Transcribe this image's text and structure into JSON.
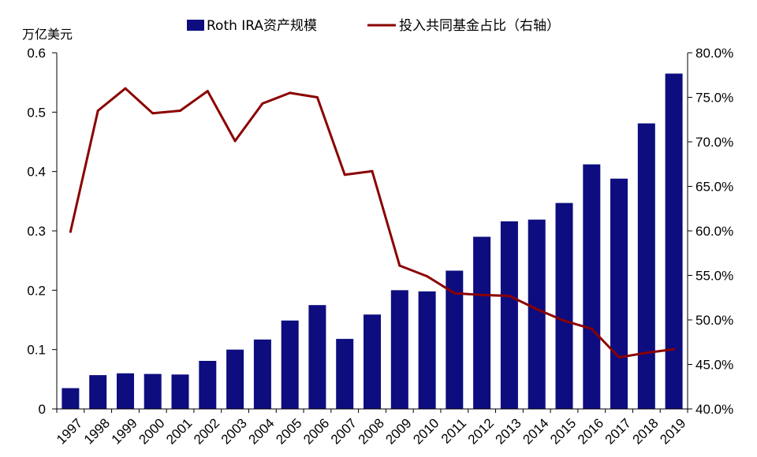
{
  "chart_data": {
    "type": "bar+line",
    "categories": [
      "1997",
      "1998",
      "1999",
      "2000",
      "2001",
      "2002",
      "2003",
      "2004",
      "2005",
      "2006",
      "2007",
      "2008",
      "2009",
      "2010",
      "2011",
      "2012",
      "2013",
      "2014",
      "2015",
      "2016",
      "2017",
      "2018",
      "2019"
    ],
    "series": [
      {
        "name": "Roth IRA资产规模",
        "type": "bar",
        "axis": "left",
        "color": "#0d0d80",
        "values": [
          0.035,
          0.057,
          0.06,
          0.059,
          0.058,
          0.081,
          0.1,
          0.117,
          0.149,
          0.175,
          0.118,
          0.159,
          0.2,
          0.198,
          0.233,
          0.29,
          0.316,
          0.319,
          0.347,
          0.412,
          0.388,
          0.481,
          0.565
        ]
      },
      {
        "name": "投入共同基金占比（右轴）",
        "type": "line",
        "axis": "right",
        "color": "#8b0000",
        "values": [
          0.599,
          0.735,
          0.76,
          0.732,
          0.735,
          0.757,
          0.701,
          0.743,
          0.755,
          0.75,
          0.663,
          0.667,
          0.561,
          0.549,
          0.53,
          0.528,
          0.527,
          0.512,
          0.499,
          0.49,
          0.458,
          0.463,
          0.467
        ]
      }
    ],
    "yleft": {
      "label": "万亿美元",
      "range": [
        0,
        0.6
      ],
      "ticks": [
        "0",
        "0.1",
        "0.2",
        "0.3",
        "0.4",
        "0.5",
        "0.6"
      ]
    },
    "yright": {
      "range": [
        0.4,
        0.8
      ],
      "ticks": [
        "40.0%",
        "45.0%",
        "50.0%",
        "55.0%",
        "60.0%",
        "65.0%",
        "70.0%",
        "75.0%",
        "80.0%"
      ]
    },
    "legend_position": "top",
    "grid": false
  }
}
